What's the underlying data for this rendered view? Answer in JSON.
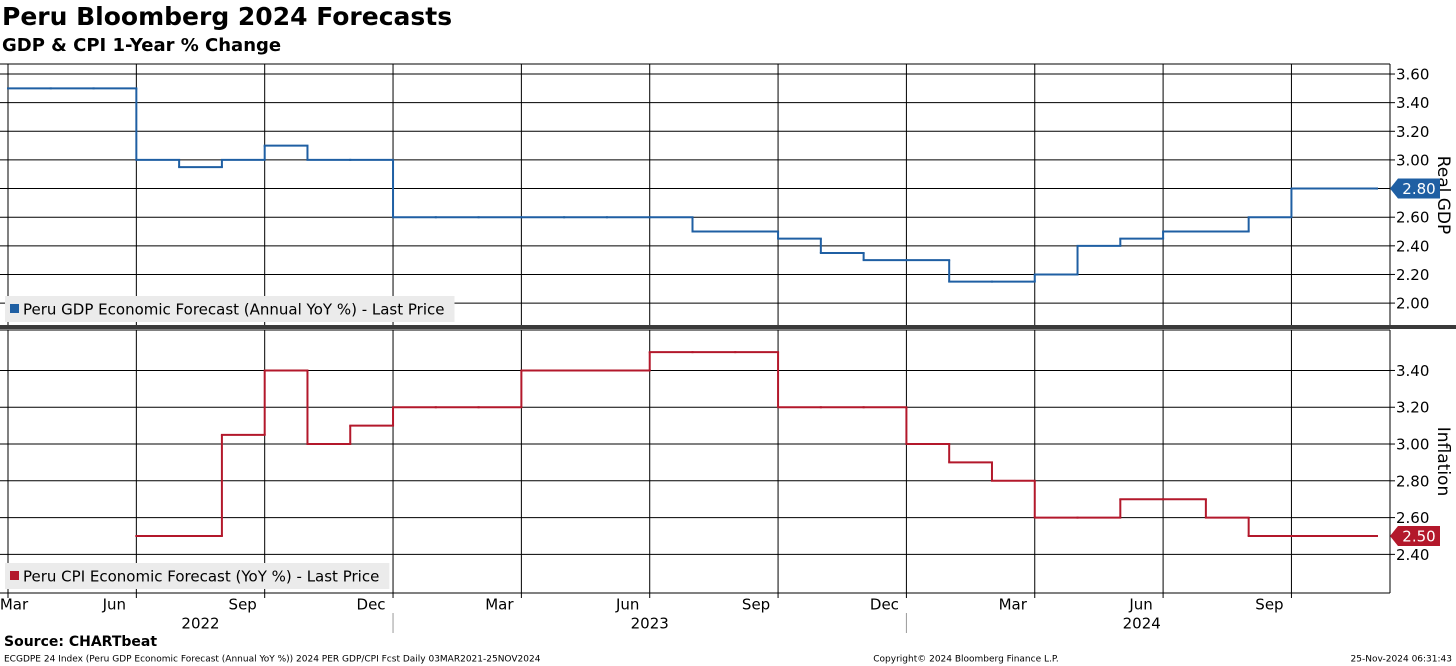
{
  "title": "Peru Bloomberg 2024 Forecasts",
  "subtitle": "GDP & CPI 1-Year % Change",
  "source": "Source: CHARTbeat",
  "footer": {
    "left": "ECGDPE 24 Index (Peru GDP Economic Forecast (Annual YoY %)) 2024 PER GDP/CPI Fcst  Daily 03MAR2021-25NOV2024",
    "center": "Copyright© 2024 Bloomberg Finance L.P.",
    "right": "25-Nov-2024 06:31:43"
  },
  "chart_data": [
    {
      "type": "line",
      "y_label": "Real GDP",
      "x": [
        "2022-03",
        "2022-04",
        "2022-05",
        "2022-06",
        "2022-07",
        "2022-08",
        "2022-09",
        "2022-10",
        "2022-11",
        "2022-12",
        "2023-01",
        "2023-02",
        "2023-03",
        "2023-04",
        "2023-05",
        "2023-06",
        "2023-07",
        "2023-08",
        "2023-09",
        "2023-10",
        "2023-11",
        "2023-12",
        "2024-01",
        "2024-02",
        "2024-03",
        "2024-04",
        "2024-05",
        "2024-06",
        "2024-07",
        "2024-08",
        "2024-09",
        "2024-10",
        "2024-11"
      ],
      "xlim": [
        "2022-03",
        "2024-11"
      ],
      "xticks": [
        "2022-03",
        "2022-06",
        "2022-09",
        "2022-12",
        "2023-03",
        "2023-06",
        "2023-09",
        "2023-12",
        "2024-03",
        "2024-06",
        "2024-09"
      ],
      "series": [
        {
          "name": "Peru GDP Economic Forecast (Annual YoY %) - Last Price",
          "color": "#1f5fa3",
          "values": [
            3.5,
            3.5,
            3.5,
            3.0,
            2.95,
            3.0,
            3.1,
            3.0,
            3.0,
            2.6,
            2.6,
            2.6,
            2.6,
            2.6,
            2.6,
            2.6,
            2.5,
            2.5,
            2.45,
            2.35,
            2.3,
            2.3,
            2.15,
            2.15,
            2.2,
            2.4,
            2.45,
            2.5,
            2.5,
            2.6,
            2.8,
            2.8,
            2.8
          ],
          "last_value_label": "2.80"
        }
      ],
      "ylim": [
        1.84,
        3.67
      ],
      "yticks": [
        {
          "value": 2.0,
          "label": "2.00"
        },
        {
          "value": 2.2,
          "label": "2.20"
        },
        {
          "value": 2.4,
          "label": "2.40"
        },
        {
          "value": 2.6,
          "label": "2.60"
        },
        {
          "value": 2.8,
          "label": "2.80"
        },
        {
          "value": 3.0,
          "label": "3.00"
        },
        {
          "value": 3.2,
          "label": "3.20"
        },
        {
          "value": 3.4,
          "label": "3.40"
        },
        {
          "value": 3.6,
          "label": "3.60"
        }
      ],
      "grid": true,
      "legend": "lower left"
    },
    {
      "type": "line",
      "y_label": "Inflation",
      "x": [
        "2022-03",
        "2022-04",
        "2022-05",
        "2022-06",
        "2022-07",
        "2022-08",
        "2022-09",
        "2022-10",
        "2022-11",
        "2022-12",
        "2023-01",
        "2023-02",
        "2023-03",
        "2023-04",
        "2023-05",
        "2023-06",
        "2023-07",
        "2023-08",
        "2023-09",
        "2023-10",
        "2023-11",
        "2023-12",
        "2024-01",
        "2024-02",
        "2024-03",
        "2024-04",
        "2024-05",
        "2024-06",
        "2024-07",
        "2024-08",
        "2024-09",
        "2024-10",
        "2024-11"
      ],
      "xlim": [
        "2022-03",
        "2024-11"
      ],
      "xticks": [
        {
          "value": "2022-03",
          "label": "Mar"
        },
        {
          "value": "2022-06",
          "label": "Jun"
        },
        {
          "value": "2022-09",
          "label": "Sep"
        },
        {
          "value": "2022-12",
          "label": "Dec"
        },
        {
          "value": "2023-03",
          "label": "Mar"
        },
        {
          "value": "2023-06",
          "label": "Jun"
        },
        {
          "value": "2023-09",
          "label": "Sep"
        },
        {
          "value": "2023-12",
          "label": "Dec"
        },
        {
          "value": "2024-03",
          "label": "Mar"
        },
        {
          "value": "2024-06",
          "label": "Jun"
        },
        {
          "value": "2024-09",
          "label": "Sep"
        }
      ],
      "x_groups": [
        "2022",
        "2023",
        "2024"
      ],
      "series": [
        {
          "name": "Peru CPI Economic Forecast (YoY %) - Last Price",
          "color": "#b3182b",
          "values": [
            null,
            null,
            null,
            2.5,
            2.5,
            3.05,
            3.4,
            3.0,
            3.1,
            3.2,
            3.2,
            3.2,
            3.4,
            3.4,
            3.4,
            3.5,
            3.5,
            3.5,
            3.2,
            3.2,
            3.2,
            3.0,
            2.9,
            2.8,
            2.6,
            2.6,
            2.7,
            2.7,
            2.6,
            2.5,
            2.5,
            2.5,
            2.5
          ],
          "last_value_label": "2.50"
        }
      ],
      "ylim": [
        2.19,
        3.62
      ],
      "yticks": [
        {
          "value": 2.4,
          "label": "2.40"
        },
        {
          "value": 2.6,
          "label": "2.60"
        },
        {
          "value": 2.8,
          "label": "2.80"
        },
        {
          "value": 3.0,
          "label": "3.00"
        },
        {
          "value": 3.2,
          "label": "3.20"
        },
        {
          "value": 3.4,
          "label": "3.40"
        }
      ],
      "grid": true,
      "legend": "lower left"
    }
  ]
}
